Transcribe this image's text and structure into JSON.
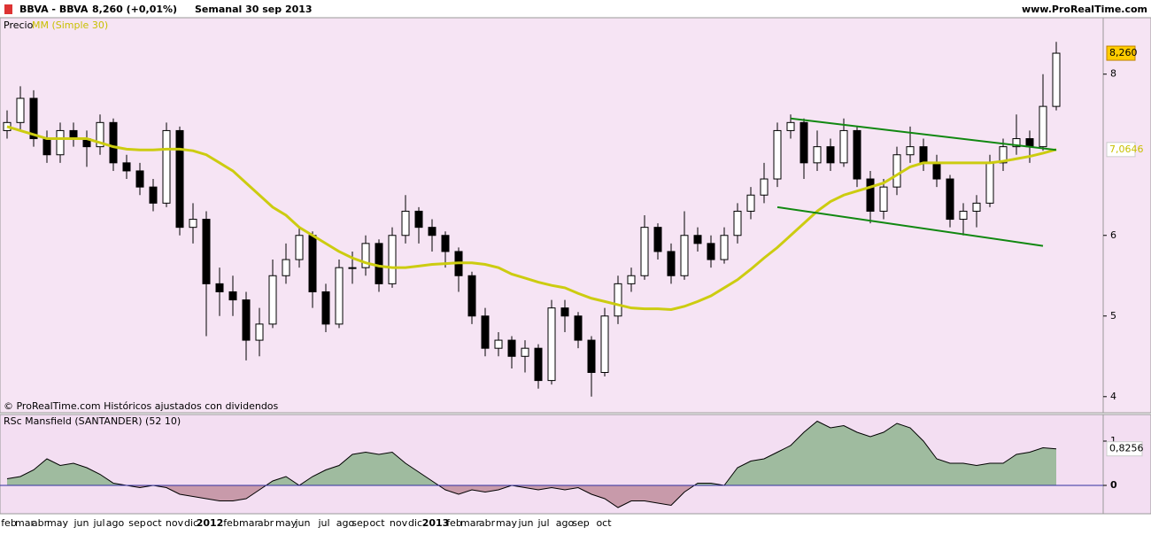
{
  "header": {
    "symbol": "BBVA - BBVA",
    "quote": "8,260 (+0,01%)",
    "period": "Semanal  30 sep 2013",
    "site": "www.ProRealTime.com",
    "price_label": "Precio",
    "ma_label": "MM (Simple 30)",
    "footer": "© ProRealTime.com Históricos ajustados con dividendos"
  },
  "x_labels": [
    "feb",
    "mar",
    "abr",
    "may",
    "jun",
    "jul",
    "ago",
    "sep",
    "oct",
    "nov",
    "dic",
    "2012",
    "feb",
    "mar",
    "abr",
    "may",
    "jun",
    "jul",
    "ago",
    "sep",
    "oct",
    "nov",
    "dic",
    "2013",
    "feb",
    "mar",
    "abr",
    "may",
    "jun",
    "jul",
    "ago",
    "sep",
    "oct"
  ],
  "chart_data": [
    {
      "type": "candlestick",
      "candles": [
        [
          7.3,
          7.55,
          7.2,
          7.4
        ],
        [
          7.4,
          7.85,
          7.3,
          7.7
        ],
        [
          7.7,
          7.8,
          7.1,
          7.2
        ],
        [
          7.2,
          7.3,
          6.9,
          7.0
        ],
        [
          7.0,
          7.4,
          6.9,
          7.3
        ],
        [
          7.3,
          7.4,
          7.1,
          7.2
        ],
        [
          7.2,
          7.3,
          6.85,
          7.1
        ],
        [
          7.1,
          7.5,
          7.0,
          7.4
        ],
        [
          7.4,
          7.45,
          6.8,
          6.9
        ],
        [
          6.9,
          7.0,
          6.7,
          6.8
        ],
        [
          6.8,
          6.9,
          6.5,
          6.6
        ],
        [
          6.6,
          6.7,
          6.3,
          6.4
        ],
        [
          6.4,
          7.4,
          6.35,
          7.3
        ],
        [
          7.3,
          7.35,
          6.0,
          6.1
        ],
        [
          6.1,
          6.4,
          5.9,
          6.2
        ],
        [
          6.2,
          6.3,
          4.75,
          5.4
        ],
        [
          5.4,
          5.6,
          5.0,
          5.3
        ],
        [
          5.3,
          5.5,
          5.0,
          5.2
        ],
        [
          5.2,
          5.3,
          4.45,
          4.7
        ],
        [
          4.7,
          5.1,
          4.5,
          4.9
        ],
        [
          4.9,
          5.7,
          4.85,
          5.5
        ],
        [
          5.5,
          5.9,
          5.4,
          5.7
        ],
        [
          5.7,
          6.1,
          5.6,
          6.0
        ],
        [
          6.0,
          6.05,
          5.1,
          5.3
        ],
        [
          5.3,
          5.4,
          4.8,
          4.9
        ],
        [
          4.9,
          5.7,
          4.85,
          5.6
        ],
        [
          5.6,
          5.8,
          5.4,
          5.6
        ],
        [
          5.6,
          6.0,
          5.5,
          5.9
        ],
        [
          5.9,
          5.95,
          5.3,
          5.4
        ],
        [
          5.4,
          6.1,
          5.35,
          6.0
        ],
        [
          6.0,
          6.5,
          5.9,
          6.3
        ],
        [
          6.3,
          6.35,
          5.9,
          6.1
        ],
        [
          6.1,
          6.2,
          5.8,
          6.0
        ],
        [
          6.0,
          6.05,
          5.6,
          5.8
        ],
        [
          5.8,
          5.85,
          5.3,
          5.5
        ],
        [
          5.5,
          5.55,
          4.9,
          5.0
        ],
        [
          5.0,
          5.1,
          4.5,
          4.6
        ],
        [
          4.6,
          4.8,
          4.5,
          4.7
        ],
        [
          4.7,
          4.75,
          4.35,
          4.5
        ],
        [
          4.5,
          4.7,
          4.3,
          4.6
        ],
        [
          4.6,
          4.65,
          4.1,
          4.2
        ],
        [
          4.2,
          5.2,
          4.15,
          5.1
        ],
        [
          5.1,
          5.2,
          4.8,
          5.0
        ],
        [
          5.0,
          5.05,
          4.6,
          4.7
        ],
        [
          4.7,
          4.75,
          4.0,
          4.3
        ],
        [
          4.3,
          5.1,
          4.25,
          5.0
        ],
        [
          5.0,
          5.5,
          4.9,
          5.4
        ],
        [
          5.4,
          5.6,
          5.3,
          5.5
        ],
        [
          5.5,
          6.25,
          5.45,
          6.1
        ],
        [
          6.1,
          6.15,
          5.7,
          5.8
        ],
        [
          5.8,
          5.9,
          5.4,
          5.5
        ],
        [
          5.5,
          6.3,
          5.45,
          6.0
        ],
        [
          6.0,
          6.1,
          5.8,
          5.9
        ],
        [
          5.9,
          6.0,
          5.6,
          5.7
        ],
        [
          5.7,
          6.1,
          5.65,
          6.0
        ],
        [
          6.0,
          6.4,
          5.9,
          6.3
        ],
        [
          6.3,
          6.6,
          6.2,
          6.5
        ],
        [
          6.5,
          6.9,
          6.4,
          6.7
        ],
        [
          6.7,
          7.4,
          6.6,
          7.3
        ],
        [
          7.3,
          7.5,
          7.2,
          7.4
        ],
        [
          7.4,
          7.45,
          6.7,
          6.9
        ],
        [
          6.9,
          7.3,
          6.8,
          7.1
        ],
        [
          7.1,
          7.2,
          6.8,
          6.9
        ],
        [
          6.9,
          7.45,
          6.85,
          7.3
        ],
        [
          7.3,
          7.35,
          6.6,
          6.7
        ],
        [
          6.7,
          6.8,
          6.15,
          6.3
        ],
        [
          6.3,
          6.7,
          6.2,
          6.6
        ],
        [
          6.6,
          7.1,
          6.5,
          7.0
        ],
        [
          7.0,
          7.35,
          6.9,
          7.1
        ],
        [
          7.1,
          7.2,
          6.8,
          6.9
        ],
        [
          6.9,
          7.0,
          6.6,
          6.7
        ],
        [
          6.7,
          6.75,
          6.1,
          6.2
        ],
        [
          6.2,
          6.4,
          6.0,
          6.3
        ],
        [
          6.3,
          6.5,
          6.1,
          6.4
        ],
        [
          6.4,
          7.0,
          6.35,
          6.9
        ],
        [
          6.9,
          7.2,
          6.8,
          7.1
        ],
        [
          7.1,
          7.5,
          7.0,
          7.2
        ],
        [
          7.2,
          7.3,
          6.9,
          7.1
        ],
        [
          7.1,
          8.0,
          7.05,
          7.6
        ],
        [
          7.6,
          8.4,
          7.55,
          8.26
        ]
      ],
      "up_color": "#ffffff",
      "down_color": "#000000",
      "series": [
        {
          "name": "MM (Simple 30)",
          "color": "#cccc10",
          "values": [
            7.35,
            7.3,
            7.25,
            7.2,
            7.2,
            7.2,
            7.2,
            7.15,
            7.1,
            7.07,
            7.06,
            7.06,
            7.07,
            7.07,
            7.05,
            7.0,
            6.9,
            6.8,
            6.65,
            6.5,
            6.35,
            6.25,
            6.1,
            6.0,
            5.9,
            5.8,
            5.72,
            5.66,
            5.62,
            5.6,
            5.6,
            5.62,
            5.64,
            5.65,
            5.66,
            5.66,
            5.64,
            5.6,
            5.52,
            5.47,
            5.42,
            5.38,
            5.35,
            5.28,
            5.22,
            5.18,
            5.14,
            5.1,
            5.09,
            5.09,
            5.08,
            5.12,
            5.18,
            5.25,
            5.35,
            5.45,
            5.58,
            5.72,
            5.85,
            6.0,
            6.15,
            6.3,
            6.42,
            6.5,
            6.55,
            6.6,
            6.65,
            6.75,
            6.85,
            6.9,
            6.9,
            6.9,
            6.9,
            6.9,
            6.9,
            6.92,
            6.95,
            6.98,
            7.02,
            7.0646
          ]
        }
      ],
      "trendlines": [
        {
          "color": "#118811",
          "start": [
            59,
            7.45
          ],
          "end": [
            79,
            7.06
          ]
        },
        {
          "color": "#118811",
          "start": [
            58,
            6.35
          ],
          "end": [
            78,
            5.87
          ]
        }
      ],
      "ylim": [
        3.8,
        8.7
      ],
      "yticks": [
        4,
        5,
        6,
        8
      ],
      "last_labels": [
        {
          "value": 8.26,
          "label": "8,260"
        },
        {
          "value": 7.0646,
          "label": "7,0646"
        }
      ]
    },
    {
      "type": "area",
      "title": "RSc Mansfield (SANTANDER) (52 10)",
      "values": [
        0.15,
        0.2,
        0.35,
        0.6,
        0.45,
        0.5,
        0.4,
        0.25,
        0.05,
        0.0,
        -0.05,
        0.0,
        -0.05,
        -0.2,
        -0.25,
        -0.3,
        -0.35,
        -0.35,
        -0.3,
        -0.1,
        0.1,
        0.2,
        0.0,
        0.2,
        0.35,
        0.45,
        0.7,
        0.75,
        0.7,
        0.75,
        0.5,
        0.3,
        0.1,
        -0.1,
        -0.2,
        -0.1,
        -0.15,
        -0.1,
        0.0,
        -0.05,
        -0.1,
        -0.05,
        -0.1,
        -0.05,
        -0.2,
        -0.3,
        -0.5,
        -0.35,
        -0.35,
        -0.4,
        -0.45,
        -0.15,
        0.05,
        0.05,
        0.0,
        0.4,
        0.55,
        0.6,
        0.75,
        0.9,
        1.2,
        1.45,
        1.3,
        1.35,
        1.2,
        1.1,
        1.2,
        1.4,
        1.3,
        1.0,
        0.6,
        0.5,
        0.5,
        0.45,
        0.5,
        0.5,
        0.7,
        0.75,
        0.85,
        0.8256
      ],
      "positive_color": "#9fbb9f",
      "negative_color": "#c89aaa",
      "ylim": [
        -0.64,
        1.6
      ],
      "yticks": [
        0,
        1
      ],
      "last_labels": [
        {
          "value": 0.8256,
          "label": "0,8256"
        }
      ]
    }
  ]
}
